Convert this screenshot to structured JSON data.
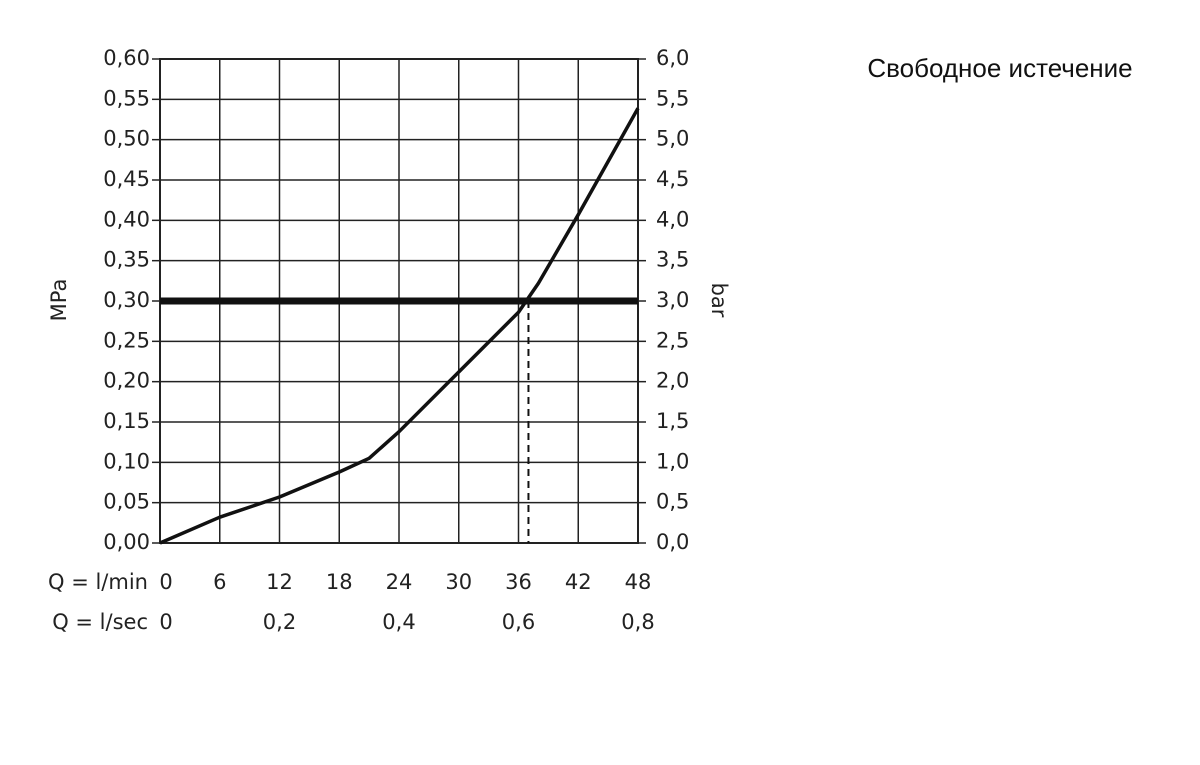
{
  "chart_data": {
    "type": "line",
    "title": "Свободное истечение",
    "ylabel": "MPa",
    "y2label": "bar",
    "xlabel": "Q = l/min",
    "x2label": "Q = l/sec",
    "xlim": [
      0,
      48
    ],
    "xticks": [
      0,
      6,
      12,
      18,
      24,
      30,
      36,
      42,
      48
    ],
    "x2lim": [
      0,
      0.8
    ],
    "x2ticks": [
      0,
      {
        "value": 0.2,
        "label": "0,2"
      },
      {
        "value": 0.4,
        "label": "0,4"
      },
      {
        "value": 0.6,
        "label": "0,6"
      },
      {
        "value": 0.8,
        "label": "0,8"
      }
    ],
    "ylim": [
      0,
      0.6
    ],
    "yticks": [
      {
        "value": 0,
        "label": "0,00"
      },
      {
        "value": 0.05,
        "label": "0,05"
      },
      {
        "value": 0.1,
        "label": "0,10"
      },
      {
        "value": 0.15,
        "label": "0,15"
      },
      {
        "value": 0.2,
        "label": "0,20"
      },
      {
        "value": 0.25,
        "label": "0,25"
      },
      {
        "value": 0.3,
        "label": "0,30"
      },
      {
        "value": 0.35,
        "label": "0,35"
      },
      {
        "value": 0.4,
        "label": "0,40"
      },
      {
        "value": 0.45,
        "label": "0,45"
      },
      {
        "value": 0.5,
        "label": "0,50"
      },
      {
        "value": 0.55,
        "label": "0,55"
      },
      {
        "value": 0.6,
        "label": "0,60"
      }
    ],
    "y2lim": [
      0,
      6
    ],
    "y2ticks": [
      {
        "value": 0,
        "label": "0,0"
      },
      {
        "value": 0.5,
        "label": "0,5"
      },
      {
        "value": 1,
        "label": "1,0"
      },
      {
        "value": 1.5,
        "label": "1,5"
      },
      {
        "value": 2,
        "label": "2,0"
      },
      {
        "value": 2.5,
        "label": "2,5"
      },
      {
        "value": 3,
        "label": "3,0"
      },
      {
        "value": 3.5,
        "label": "3,5"
      },
      {
        "value": 4,
        "label": "4,0"
      },
      {
        "value": 4.5,
        "label": "4,5"
      },
      {
        "value": 5,
        "label": "5,0"
      },
      {
        "value": 5.5,
        "label": "5,5"
      },
      {
        "value": 6,
        "label": "6,0"
      }
    ],
    "grid": true,
    "hline": 0.3,
    "vline": 37,
    "series": [
      {
        "color": "#111111",
        "x": [
          0,
          6,
          12,
          18,
          21,
          24,
          30,
          36,
          38,
          42,
          48
        ],
        "values": [
          0,
          0.032,
          0.057,
          0.088,
          0.105,
          0.138,
          0.212,
          0.286,
          0.322,
          0.407,
          0.539
        ]
      }
    ]
  }
}
